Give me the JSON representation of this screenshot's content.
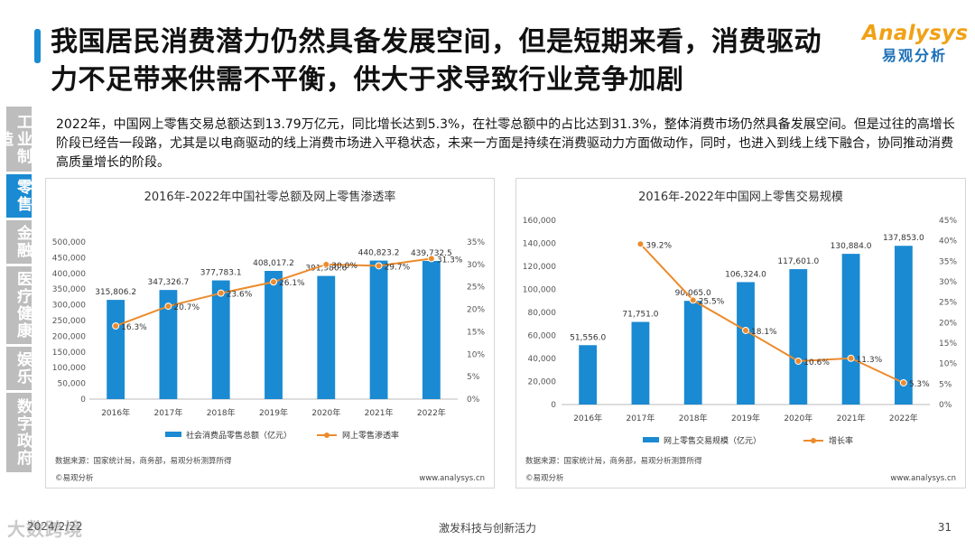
{
  "header": {
    "title": "我国居民消费潜力仍然具备发展空间，但是短期来看，消费驱动力不足带来供需不平衡，供大于求导致行业竞争加剧",
    "logo_en": "Analysys",
    "logo_cn": "易观分析"
  },
  "sidebar": {
    "items": [
      "工业制造",
      "零售",
      "金融",
      "医疗健康",
      "娱乐",
      "数字政府"
    ],
    "active": "零售"
  },
  "description": "2022年，中国网上零售交易总额达到13.79万亿元，同比增长达到5.3%，在社零总额中的占比达到31.3%，整体消费市场仍然具备发展空间。但是过往的高增长阶段已经告一段路，尤其是以电商驱动的线上消费市场进入平稳状态，未来一方面是持续在消费驱动力方面做动作，同时，也进入到线上线下融合，协同推动消费高质量增长的阶段。",
  "colors": {
    "bar": "#1a8ad2",
    "line": "#ec8b2d",
    "accent": "#1a8ad2",
    "inactive": "#bdbdbd"
  },
  "chart_data": [
    {
      "type": "bar",
      "title": "2016年-2022年中国社零总额及网上零售渗透率",
      "categories": [
        "2016年",
        "2017年",
        "2018年",
        "2019年",
        "2020年",
        "2021年",
        "2022年"
      ],
      "series": [
        {
          "name": "社会消费品零售总额（亿元）",
          "type": "bar",
          "axis": "left",
          "values": [
            315806.2,
            347326.7,
            377783.1,
            408017.2,
            391980.6,
            440823.2,
            439732.5
          ],
          "labels": [
            "315,806.2",
            "347,326.7",
            "377,783.1",
            "408,017.2",
            "391,980.6",
            "440,823.2",
            "439,732.5"
          ]
        },
        {
          "name": "网上零售渗透率",
          "type": "line",
          "axis": "right",
          "values": [
            16.3,
            20.7,
            23.6,
            26.1,
            30.0,
            29.7,
            31.3
          ],
          "labels": [
            "16.3%",
            "20.7%",
            "23.6%",
            "26.1%",
            "30.0%",
            "29.7%",
            "31.3%"
          ]
        }
      ],
      "ylim_left": [
        0,
        500000
      ],
      "yticks_left": [
        "0",
        "50,000",
        "100,000",
        "150,000",
        "200,000",
        "250,000",
        "300,000",
        "350,000",
        "400,000",
        "450,000",
        "500,000"
      ],
      "ylim_right": [
        0,
        35
      ],
      "yticks_right": [
        "0%",
        "5%",
        "10%",
        "15%",
        "20%",
        "25%",
        "30%",
        "35%"
      ],
      "source": "数据来源：国家统计局，商务部，易观分析测算所得",
      "copyright": "©易观分析",
      "website": "www.analysys.cn"
    },
    {
      "type": "bar",
      "title": "2016年-2022年中国网上零售交易规模",
      "categories": [
        "2016年",
        "2017年",
        "2018年",
        "2019年",
        "2020年",
        "2021年",
        "2022年"
      ],
      "series": [
        {
          "name": "网上零售交易规模（亿元）",
          "type": "bar",
          "axis": "left",
          "values": [
            51556.0,
            71751.0,
            90065.0,
            106324.0,
            117601.0,
            130884.0,
            137853.0
          ],
          "labels": [
            "51,556.0",
            "71,751.0",
            "90,065.0",
            "106,324.0",
            "117,601.0",
            "130,884.0",
            "137,853.0"
          ]
        },
        {
          "name": "增长率",
          "type": "line",
          "axis": "right",
          "values": [
            null,
            39.2,
            25.5,
            18.1,
            10.6,
            11.3,
            5.3
          ],
          "labels": [
            "",
            "39.2%",
            "25.5%",
            "18.1%",
            "10.6%",
            "11.3%",
            "5.3%"
          ]
        }
      ],
      "ylim_left": [
        0,
        160000
      ],
      "yticks_left": [
        "0",
        "20,000",
        "40,000",
        "60,000",
        "80,000",
        "100,000",
        "120,000",
        "140,000",
        "160,000"
      ],
      "ylim_right": [
        0,
        45
      ],
      "yticks_right": [
        "0%",
        "5%",
        "10%",
        "15%",
        "20%",
        "25%",
        "30%",
        "35%",
        "40%",
        "45%"
      ],
      "source": "数据来源：国家统计局，商务部，易观分析测算所得",
      "copyright": "©易观分析",
      "website": "www.analysys.cn"
    }
  ],
  "footer": {
    "date": "2024/2/22",
    "watermark": "大数跨境",
    "slogan": "激发科技与创新活力",
    "page": "31"
  }
}
